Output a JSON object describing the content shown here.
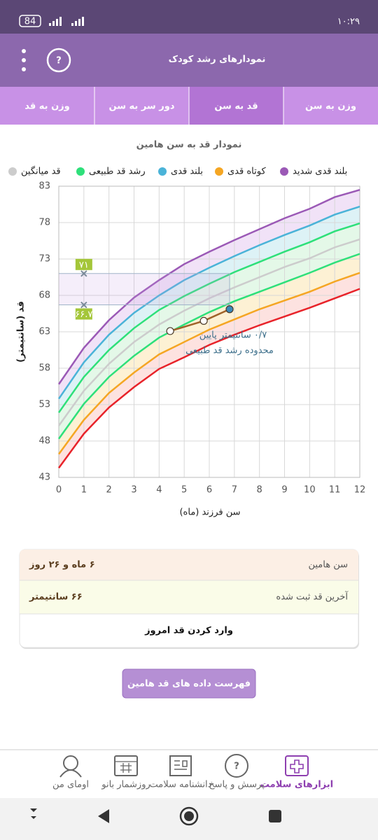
{
  "status_bar": {
    "time": "۱۰:۲۹",
    "battery": "84"
  },
  "header": {
    "title": "نمودارهای رشد کودک"
  },
  "tabs": [
    "وزن به سن",
    "قد به سن",
    "دور سر به سن",
    "وزن به قد"
  ],
  "chart_data": {
    "type": "line",
    "title": "نمودار قد به سن هامین",
    "x_label": "سن فرزند (ماه)",
    "y_label": "قد (سانتیمتر)",
    "legend": [
      {
        "name": "بلند قدی شدید",
        "color": "#9b59b6"
      },
      {
        "name": "کوتاه قدی",
        "color": "#f5a623"
      },
      {
        "name": "بلند قدی",
        "color": "#4ab3d8"
      },
      {
        "name": "رشد قد طبیعی",
        "color": "#2ee07a"
      },
      {
        "name": "قد میانگین",
        "color": "#cccccc"
      }
    ],
    "x": [
      0,
      1,
      2,
      3,
      4,
      5,
      6,
      7,
      8,
      9,
      10,
      11,
      12
    ],
    "series": [
      {
        "color": "#e8232a",
        "values": [
          44.3,
          49,
          52.6,
          55.4,
          57.9,
          59.5,
          61.2,
          62.6,
          63.9,
          65.1,
          66.3,
          67.6,
          68.9
        ]
      },
      {
        "color": "#f5a623",
        "values": [
          46.2,
          50.9,
          54.6,
          57.4,
          59.9,
          61.6,
          63.3,
          64.7,
          66.1,
          67.3,
          68.5,
          69.9,
          71.1
        ]
      },
      {
        "color": "#2ee07a",
        "values": [
          48.3,
          53.1,
          56.8,
          59.7,
          62.2,
          64.0,
          65.7,
          67.2,
          68.5,
          69.8,
          71.1,
          72.5,
          73.7
        ]
      },
      {
        "color": "#cccccc",
        "values": [
          50.1,
          54.9,
          58.6,
          61.6,
          64.0,
          65.9,
          67.6,
          69.1,
          70.5,
          71.9,
          73.1,
          74.6,
          75.7
        ]
      },
      {
        "color": "#2ee07a",
        "values": [
          51.9,
          56.8,
          60.5,
          63.5,
          66.0,
          67.9,
          69.6,
          71.2,
          72.6,
          74.0,
          75.3,
          76.8,
          77.9
        ]
      },
      {
        "color": "#4ab3d8",
        "values": [
          53.8,
          58.8,
          62.6,
          65.6,
          68.0,
          70.1,
          71.8,
          73.4,
          74.9,
          76.3,
          77.6,
          79.1,
          80.2
        ]
      },
      {
        "color": "#9b59b6",
        "values": [
          55.8,
          60.8,
          64.6,
          67.7,
          70.1,
          72.3,
          74,
          75.6,
          77.1,
          78.6,
          79.9,
          81.5,
          82.5
        ]
      }
    ],
    "child": {
      "color": "#a0632a",
      "x": [
        4.44,
        5.78,
        6.81
      ],
      "values": [
        63.1,
        64.5,
        66.1
      ]
    },
    "guides": [
      {
        "value": 71,
        "label": "۷۱"
      },
      {
        "value": 66.7,
        "label": "۶۶.۷"
      }
    ],
    "annotation": [
      "۰/۷ سانتیمتر پایین",
      "محدوده رشد قد طبیعی"
    ],
    "xlim": [
      0,
      12
    ],
    "xticks": [
      0,
      1,
      2,
      3,
      4,
      5,
      6,
      7,
      8,
      9,
      10,
      11,
      12
    ],
    "ylim": [
      43,
      83
    ],
    "yticks": [
      43,
      48,
      53,
      58,
      63,
      68,
      73,
      78,
      83
    ],
    "grid": true
  },
  "info": {
    "rows": [
      {
        "label": "سن هامین",
        "value": "۶ ماه و ۲۶ روز"
      },
      {
        "label": "آخرین قد ثبت شده",
        "value": "۶۶ سانتیمتر"
      }
    ],
    "action": "وارد کردن قد امروز"
  },
  "button": "فهرست داده های قد هامین",
  "bottom_nav": [
    "ابزارهای سلامت",
    "پرسش و پاسخ",
    "دانشنامه سلامت",
    "روزشمار بانو",
    "اومای من"
  ]
}
